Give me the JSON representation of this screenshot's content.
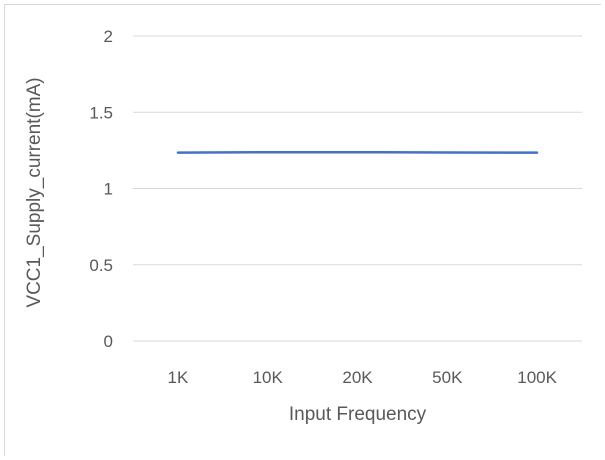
{
  "chart_data": {
    "type": "line",
    "title": "",
    "xlabel": "Input Frequency",
    "ylabel": "VCC1_Supply_current(mA)",
    "categories": [
      "1K",
      "10K",
      "20K",
      "50K",
      "100K"
    ],
    "series": [
      {
        "values": [
          1.235,
          1.238,
          1.238,
          1.236,
          1.235
        ],
        "color": "#4472c4"
      }
    ],
    "ylim": [
      0,
      2
    ],
    "yticks": [
      "0",
      "0.5",
      "1",
      "1.5",
      "2"
    ],
    "grid": true,
    "legend": "none"
  }
}
